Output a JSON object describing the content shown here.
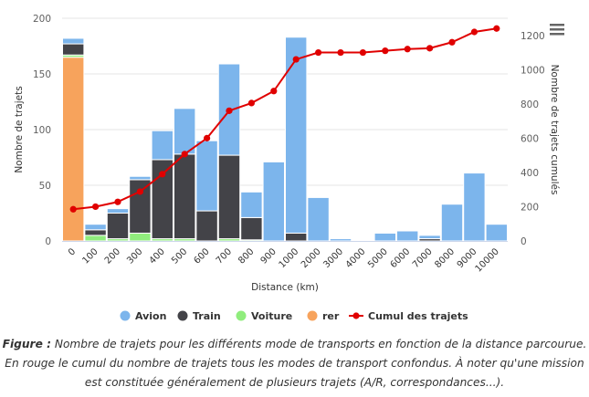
{
  "chart_data": {
    "type": "bar",
    "stacked": true,
    "xlabel": "Distance (km)",
    "ylabel": "Nombre de trajets",
    "y2label": "Nombre de trajets cumulés",
    "categories": [
      "0",
      "100",
      "200",
      "300",
      "400",
      "500",
      "600",
      "700",
      "800",
      "900",
      "1000",
      "2000",
      "3000",
      "4000",
      "5000",
      "6000",
      "7000",
      "8000",
      "9000",
      "10000"
    ],
    "ylim": [
      0,
      200
    ],
    "yticks": [
      0,
      50,
      100,
      150,
      200
    ],
    "y2lim": [
      0,
      1300
    ],
    "y2ticks": [
      0,
      200,
      400,
      600,
      800,
      1000,
      1200
    ],
    "grid": true,
    "legend_position": "bottom",
    "series": [
      {
        "name": "rer",
        "color": "#f7a35c",
        "values": [
          165,
          0,
          0,
          0,
          0,
          0,
          0,
          0,
          0,
          0,
          0,
          0,
          0,
          0,
          0,
          0,
          0,
          0,
          0,
          0
        ]
      },
      {
        "name": "Voiture",
        "color": "#90ed7d",
        "values": [
          2,
          5,
          2,
          7,
          2,
          2,
          0,
          2,
          1,
          0,
          0,
          0,
          0,
          0,
          0,
          0,
          0,
          0,
          0,
          0
        ]
      },
      {
        "name": "Train",
        "color": "#434348",
        "values": [
          10,
          5,
          23,
          48,
          71,
          76,
          27,
          75,
          20,
          0,
          7,
          0,
          0,
          0,
          0,
          0,
          2,
          0,
          0,
          0
        ]
      },
      {
        "name": "Avion",
        "color": "#7cb5ec",
        "values": [
          5,
          5,
          4,
          3,
          26,
          41,
          63,
          82,
          23,
          71,
          176,
          39,
          2,
          0,
          7,
          9,
          3,
          33,
          61,
          15
        ]
      },
      {
        "name": "Cumul des trajets",
        "color": "#e00000",
        "type": "line",
        "axis": "right",
        "values": [
          185,
          200,
          228,
          288,
          390,
          507,
          600,
          760,
          805,
          875,
          1060,
          1100,
          1100,
          1100,
          1110,
          1120,
          1125,
          1160,
          1220,
          1240
        ]
      }
    ],
    "legend_order": [
      "Avion",
      "Train",
      "Voiture",
      "rer",
      "Cumul des trajets"
    ]
  },
  "caption": {
    "label": "Figure :",
    "text": " Nombre de trajets pour les différents mode de transports en fonction de la distance parcourue. En rouge le cumul du nombre de trajets tous les modes de transport confondus. À noter qu'une mission est constituée généralement de plusieurs trajets (A/R, correspondances...)."
  }
}
